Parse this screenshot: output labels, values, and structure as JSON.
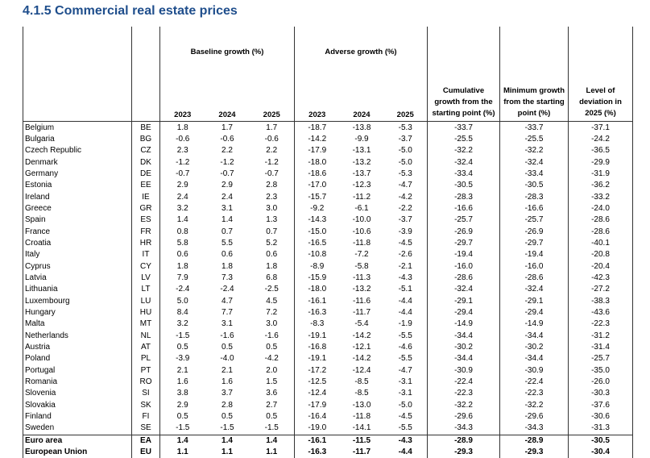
{
  "title": "4.1.5 Commercial real estate prices",
  "table": {
    "group_headers": [
      "Baseline growth (%)",
      "Adverse growth (%)",
      "Cumulative growth from the starting point (%)",
      "Minimum growth from the starting point (%)",
      "Level of deviation in 2025 (%)"
    ],
    "years": [
      "2023",
      "2024",
      "2025",
      "2023",
      "2024",
      "2025"
    ],
    "rows": [
      [
        "Belgium",
        "BE",
        "1.8",
        "1.7",
        "1.7",
        "-18.7",
        "-13.8",
        "-5.3",
        "-33.7",
        "-33.7",
        "-37.1"
      ],
      [
        "Bulgaria",
        "BG",
        "-0.6",
        "-0.6",
        "-0.6",
        "-14.2",
        "-9.9",
        "-3.7",
        "-25.5",
        "-25.5",
        "-24.2"
      ],
      [
        "Czech Republic",
        "CZ",
        "2.3",
        "2.2",
        "2.2",
        "-17.9",
        "-13.1",
        "-5.0",
        "-32.2",
        "-32.2",
        "-36.5"
      ],
      [
        "Denmark",
        "DK",
        "-1.2",
        "-1.2",
        "-1.2",
        "-18.0",
        "-13.2",
        "-5.0",
        "-32.4",
        "-32.4",
        "-29.9"
      ],
      [
        "Germany",
        "DE",
        "-0.7",
        "-0.7",
        "-0.7",
        "-18.6",
        "-13.7",
        "-5.3",
        "-33.4",
        "-33.4",
        "-31.9"
      ],
      [
        "Estonia",
        "EE",
        "2.9",
        "2.9",
        "2.8",
        "-17.0",
        "-12.3",
        "-4.7",
        "-30.5",
        "-30.5",
        "-36.2"
      ],
      [
        "Ireland",
        "IE",
        "2.4",
        "2.4",
        "2.3",
        "-15.7",
        "-11.2",
        "-4.2",
        "-28.3",
        "-28.3",
        "-33.2"
      ],
      [
        "Greece",
        "GR",
        "3.2",
        "3.1",
        "3.0",
        "-9.2",
        "-6.1",
        "-2.2",
        "-16.6",
        "-16.6",
        "-24.0"
      ],
      [
        "Spain",
        "ES",
        "1.4",
        "1.4",
        "1.3",
        "-14.3",
        "-10.0",
        "-3.7",
        "-25.7",
        "-25.7",
        "-28.6"
      ],
      [
        "France",
        "FR",
        "0.8",
        "0.7",
        "0.7",
        "-15.0",
        "-10.6",
        "-3.9",
        "-26.9",
        "-26.9",
        "-28.6"
      ],
      [
        "Croatia",
        "HR",
        "5.8",
        "5.5",
        "5.2",
        "-16.5",
        "-11.8",
        "-4.5",
        "-29.7",
        "-29.7",
        "-40.1"
      ],
      [
        "Italy",
        "IT",
        "0.6",
        "0.6",
        "0.6",
        "-10.8",
        "-7.2",
        "-2.6",
        "-19.4",
        "-19.4",
        "-20.8"
      ],
      [
        "Cyprus",
        "CY",
        "1.8",
        "1.8",
        "1.8",
        "-8.9",
        "-5.8",
        "-2.1",
        "-16.0",
        "-16.0",
        "-20.4"
      ],
      [
        "Latvia",
        "LV",
        "7.9",
        "7.3",
        "6.8",
        "-15.9",
        "-11.3",
        "-4.3",
        "-28.6",
        "-28.6",
        "-42.3"
      ],
      [
        "Lithuania",
        "LT",
        "-2.4",
        "-2.4",
        "-2.5",
        "-18.0",
        "-13.2",
        "-5.1",
        "-32.4",
        "-32.4",
        "-27.2"
      ],
      [
        "Luxembourg",
        "LU",
        "5.0",
        "4.7",
        "4.5",
        "-16.1",
        "-11.6",
        "-4.4",
        "-29.1",
        "-29.1",
        "-38.3"
      ],
      [
        "Hungary",
        "HU",
        "8.4",
        "7.7",
        "7.2",
        "-16.3",
        "-11.7",
        "-4.4",
        "-29.4",
        "-29.4",
        "-43.6"
      ],
      [
        "Malta",
        "MT",
        "3.2",
        "3.1",
        "3.0",
        "-8.3",
        "-5.4",
        "-1.9",
        "-14.9",
        "-14.9",
        "-22.3"
      ],
      [
        "Netherlands",
        "NL",
        "-1.5",
        "-1.6",
        "-1.6",
        "-19.1",
        "-14.2",
        "-5.5",
        "-34.4",
        "-34.4",
        "-31.2"
      ],
      [
        "Austria",
        "AT",
        "0.5",
        "0.5",
        "0.5",
        "-16.8",
        "-12.1",
        "-4.6",
        "-30.2",
        "-30.2",
        "-31.4"
      ],
      [
        "Poland",
        "PL",
        "-3.9",
        "-4.0",
        "-4.2",
        "-19.1",
        "-14.2",
        "-5.5",
        "-34.4",
        "-34.4",
        "-25.7"
      ],
      [
        "Portugal",
        "PT",
        "2.1",
        "2.1",
        "2.0",
        "-17.2",
        "-12.4",
        "-4.7",
        "-30.9",
        "-30.9",
        "-35.0"
      ],
      [
        "Romania",
        "RO",
        "1.6",
        "1.6",
        "1.5",
        "-12.5",
        "-8.5",
        "-3.1",
        "-22.4",
        "-22.4",
        "-26.0"
      ],
      [
        "Slovenia",
        "SI",
        "3.8",
        "3.7",
        "3.6",
        "-12.4",
        "-8.5",
        "-3.1",
        "-22.3",
        "-22.3",
        "-30.3"
      ],
      [
        "Slovakia",
        "SK",
        "2.9",
        "2.8",
        "2.7",
        "-17.9",
        "-13.0",
        "-5.0",
        "-32.2",
        "-32.2",
        "-37.6"
      ],
      [
        "Finland",
        "FI",
        "0.5",
        "0.5",
        "0.5",
        "-16.4",
        "-11.8",
        "-4.5",
        "-29.6",
        "-29.6",
        "-30.6"
      ],
      [
        "Sweden",
        "SE",
        "-1.5",
        "-1.5",
        "-1.5",
        "-19.0",
        "-14.1",
        "-5.5",
        "-34.3",
        "-34.3",
        "-31.3"
      ]
    ],
    "total_rows": [
      [
        "Euro area",
        "EA",
        "1.4",
        "1.4",
        "1.4",
        "-16.1",
        "-11.5",
        "-4.3",
        "-28.9",
        "-28.9",
        "-30.5"
      ],
      [
        "European Union",
        "EU",
        "1.1",
        "1.1",
        "1.1",
        "-16.3",
        "-11.7",
        "-4.4",
        "-29.3",
        "-29.3",
        "-30.4"
      ]
    ]
  }
}
